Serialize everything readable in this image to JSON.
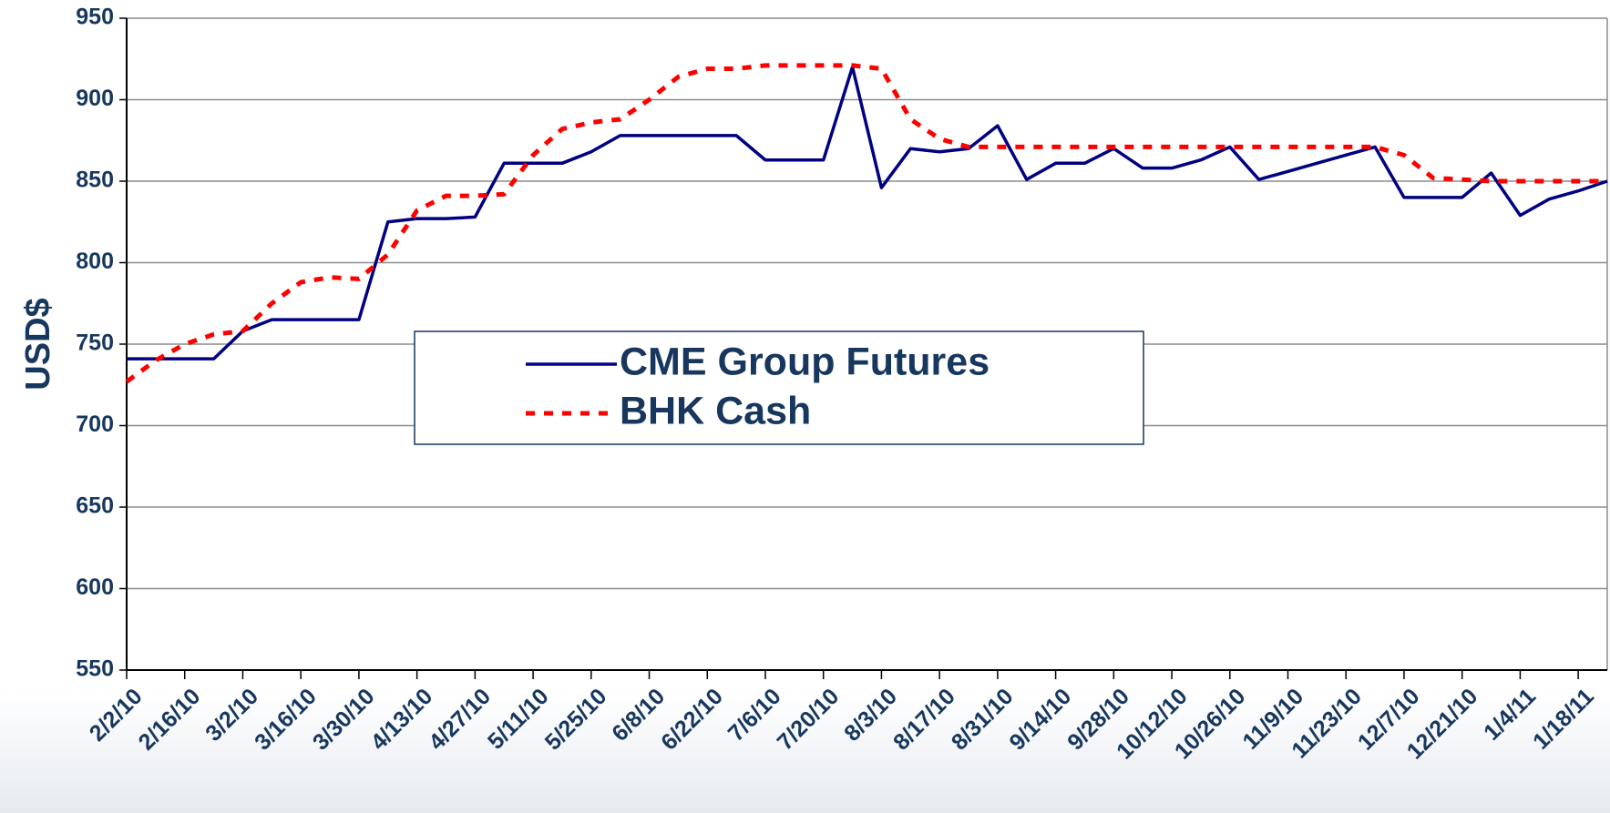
{
  "chart_data": {
    "type": "line",
    "y_label": "USD$",
    "categories": [
      "2/2/10",
      null,
      "2/16/10",
      null,
      "3/2/10",
      null,
      "3/16/10",
      null,
      "3/30/10",
      null,
      "4/13/10",
      null,
      "4/27/10",
      null,
      "5/11/10",
      null,
      "5/25/10",
      null,
      "6/8/10",
      null,
      "6/22/10",
      null,
      "7/6/10",
      null,
      "7/20/10",
      null,
      "8/3/10",
      null,
      "8/17/10",
      null,
      "8/31/10",
      null,
      "9/14/10",
      null,
      "9/28/10",
      null,
      "10/12/10",
      null,
      "10/26/10",
      null,
      "11/9/10",
      null,
      "11/23/10",
      null,
      "12/7/10",
      null,
      "12/21/10",
      null,
      "1/4/11",
      null,
      "1/18/11",
      null
    ],
    "series": [
      {
        "name": "CME Group Futures",
        "color": "#000080",
        "dashed": false,
        "values": [
          741,
          741,
          741,
          741,
          758,
          765,
          765,
          765,
          765,
          825,
          827,
          827,
          828,
          861,
          861,
          861,
          868,
          878,
          878,
          878,
          878,
          878,
          863,
          863,
          863,
          920,
          846,
          870,
          868,
          870,
          884,
          851,
          861,
          861,
          870,
          858,
          858,
          863,
          871,
          851,
          856,
          861,
          866,
          871,
          840,
          840,
          840,
          855,
          829,
          839,
          844,
          850
        ]
      },
      {
        "name": "BHK Cash",
        "color": "#ff0000",
        "dashed": true,
        "values": [
          727,
          740,
          750,
          756,
          758,
          775,
          788,
          791,
          790,
          805,
          832,
          841,
          841,
          842,
          866,
          882,
          886,
          888,
          900,
          914,
          919,
          919,
          921,
          921,
          921,
          921,
          919,
          888,
          876,
          871,
          871,
          871,
          871,
          871,
          871,
          871,
          871,
          871,
          871,
          871,
          871,
          871,
          871,
          871,
          866,
          852,
          851,
          850,
          850,
          850,
          850,
          850
        ]
      }
    ],
    "ylim": [
      550,
      950
    ],
    "yticks": [
      550,
      600,
      650,
      700,
      750,
      800,
      850,
      900,
      950
    ],
    "grid": true,
    "legend": "center"
  }
}
